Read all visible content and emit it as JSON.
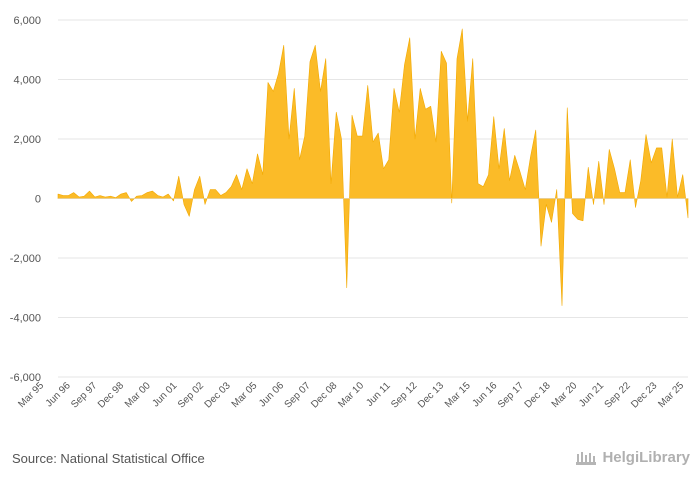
{
  "chart_data": {
    "type": "area",
    "title": "",
    "xlabel": "",
    "ylabel": "",
    "ylim": [
      -6000,
      6000
    ],
    "yticks": [
      -6000,
      -4000,
      -2000,
      0,
      2000,
      4000,
      6000
    ],
    "ytick_labels": [
      "-6,000",
      "-4,000",
      "-2,000",
      "0",
      "2,000",
      "4,000",
      "6,000"
    ],
    "grid": true,
    "fill_color": "#FBBB28",
    "stroke_color": "#F2A900",
    "grid_color": "#e6e6e6",
    "xtick_labels": [
      "Mar 95",
      "Jun 96",
      "Sep 97",
      "Dec 98",
      "Mar 00",
      "Jun 01",
      "Sep 02",
      "Dec 03",
      "Mar 05",
      "Jun 06",
      "Sep 07",
      "Dec 08",
      "Mar 10",
      "Jun 11",
      "Sep 12",
      "Dec 13",
      "Mar 15",
      "Jun 16",
      "Sep 17",
      "Dec 18",
      "Mar 20",
      "Jun 21",
      "Sep 22",
      "Dec 23",
      "Mar 25"
    ],
    "values": [
      150,
      100,
      100,
      200,
      50,
      80,
      250,
      50,
      100,
      50,
      80,
      30,
      150,
      200,
      -100,
      80,
      100,
      200,
      250,
      100,
      50,
      150,
      -80,
      750,
      -200,
      -600,
      300,
      750,
      -200,
      300,
      300,
      100,
      200,
      400,
      800,
      300,
      1000,
      500,
      1500,
      800,
      3900,
      3600,
      4200,
      5150,
      2000,
      3700,
      1300,
      2100,
      4600,
      5150,
      3600,
      4700,
      500,
      2900,
      2000,
      -3000,
      2800,
      2100,
      2100,
      3800,
      1900,
      2200,
      1000,
      1300,
      3700,
      2900,
      4500,
      5400,
      2000,
      3700,
      3000,
      3100,
      1900,
      4950,
      4550,
      -150,
      4700,
      5700,
      2600,
      4700,
      500,
      400,
      800,
      2750,
      1000,
      2350,
      600,
      1450,
      900,
      300,
      1400,
      2300,
      -1600,
      -200,
      -800,
      300,
      -3600,
      3050,
      -500,
      -700,
      -750,
      1050,
      -200,
      1250,
      -200,
      1650,
      1000,
      200,
      200,
      1300,
      -300,
      600,
      2150,
      1200,
      1700,
      1700,
      50,
      2000,
      50,
      800,
      -650
    ]
  },
  "footer": {
    "source": "Source: National Statistical Office",
    "brand": "HelgiLibrary"
  }
}
